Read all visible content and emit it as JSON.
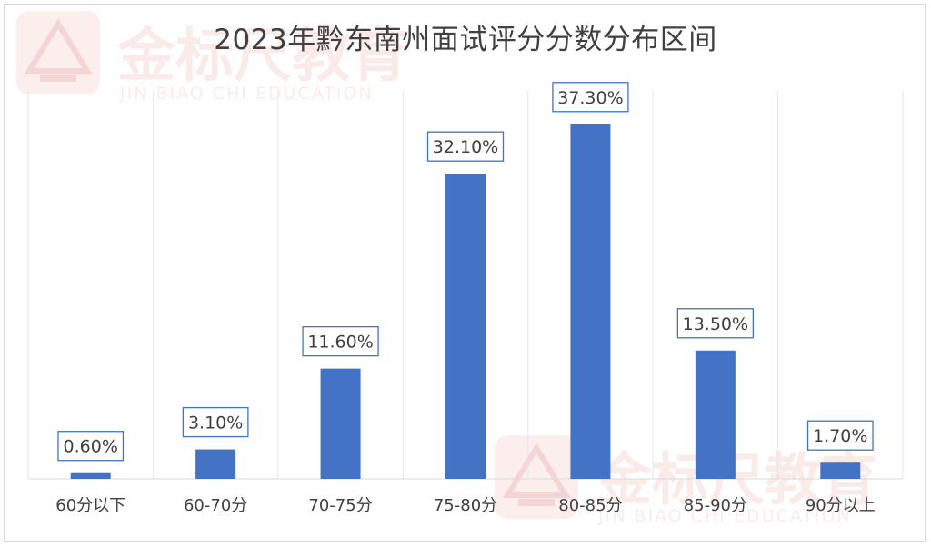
{
  "chart_data": {
    "type": "bar",
    "title": "2023年黔东南州面试评分分数分布区间",
    "categories": [
      "60分以下",
      "60-70分",
      "70-75分",
      "75-80分",
      "80-85分",
      "85-90分",
      "90分以上"
    ],
    "values": [
      0.6,
      3.1,
      11.6,
      32.1,
      37.3,
      13.5,
      1.7
    ],
    "data_labels": [
      "0.60%",
      "3.10%",
      "11.60%",
      "32.10%",
      "37.30%",
      "13.50%",
      "1.70%"
    ],
    "xlabel": "",
    "ylabel": "",
    "ylim": [
      0,
      40
    ],
    "grid": "vertical-separators",
    "legend": "none",
    "bar_color": "#4472c4",
    "label_border_color": "#4472c4"
  },
  "watermark": {
    "brand": "金标尺教育",
    "subtitle": "JIN BIAO CHI  EDUCATION"
  }
}
